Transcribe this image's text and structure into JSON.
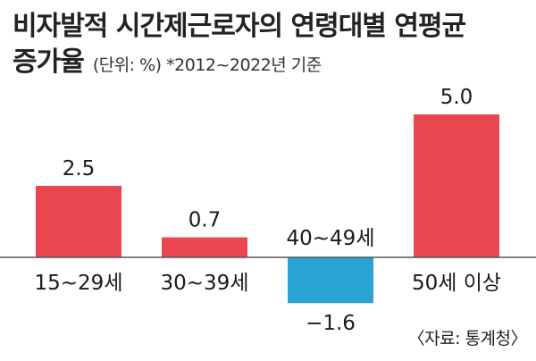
{
  "title": {
    "line1": "비자발적 시간제근로자의 연령대별 연평균",
    "line2": "증가율",
    "unit": "(단위: %) *2012~2022년 기준"
  },
  "source": "〈자료: 통계청〉",
  "chart_data": {
    "type": "bar",
    "title": "비자발적 시간제근로자의 연령대별 연평균 증가율",
    "categories": [
      "15~29세",
      "30~39세",
      "40~49세",
      "50세 이상"
    ],
    "values": [
      2.5,
      0.7,
      -1.6,
      5.0
    ],
    "value_labels": [
      "2.5",
      "0.7",
      "−1.6",
      "5.0"
    ],
    "ylim": [
      -2.3,
      5.0
    ],
    "grid": false,
    "legend": "none",
    "colors": {
      "positive": "#e8474f",
      "negative": "#28a3d3",
      "baseline": "#555555"
    }
  }
}
